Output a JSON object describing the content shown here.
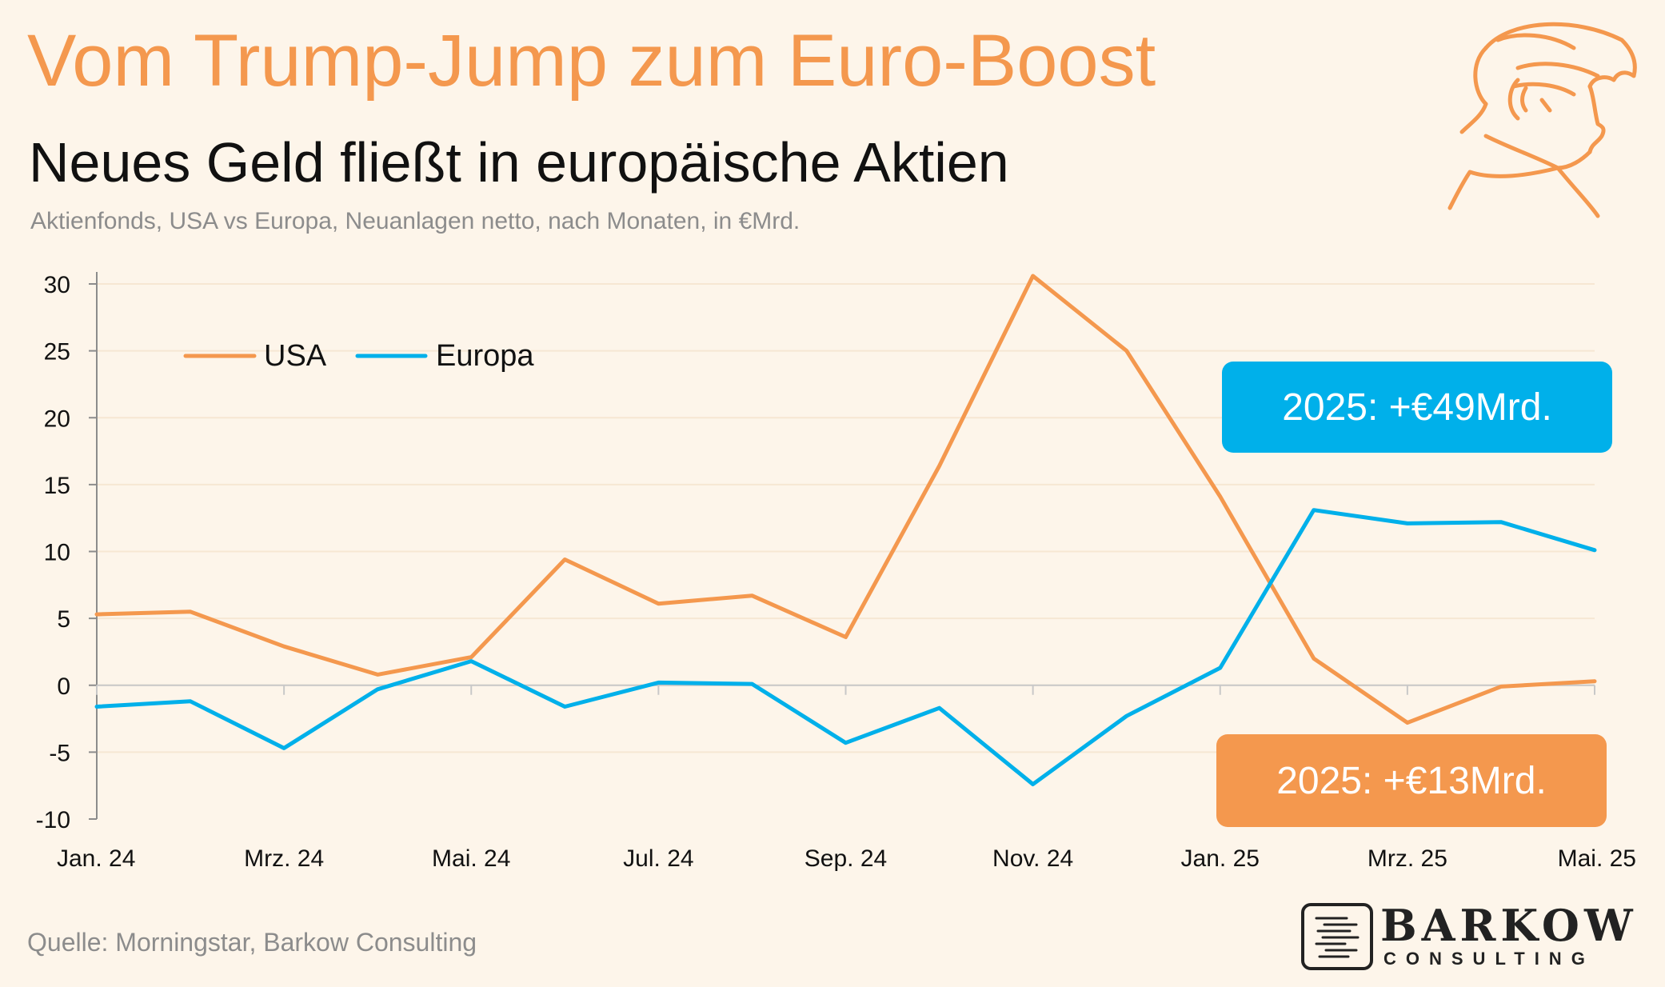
{
  "header": {
    "title": "Vom Trump-Jump zum Euro-Boost",
    "subtitle": "Neues Geld fließt in europäische Aktien",
    "caption": "Aktienfonds, USA vs Europa, Neuanlagen netto, nach Monaten, in €Mrd."
  },
  "callouts": {
    "europa": "2025: +€49Mrd.",
    "usa": "2025: +€13Mrd."
  },
  "footer": {
    "source": "Quelle: Morningstar, Barkow Consulting"
  },
  "logo": {
    "name": "BARKOW",
    "tagline": "CONSULTING"
  },
  "chart_data": {
    "type": "line",
    "ylim": [
      -10,
      30
    ],
    "yticks": [
      -10,
      -5,
      0,
      5,
      10,
      15,
      20,
      25,
      30
    ],
    "x": [
      "Jan. 24",
      "Feb. 24",
      "Mrz. 24",
      "Apr. 24",
      "Mai. 24",
      "Jun. 24",
      "Jul. 24",
      "Aug. 24",
      "Sep. 24",
      "Okt. 24",
      "Nov. 24",
      "Dez. 24",
      "Jan. 25",
      "Feb. 25",
      "Mrz. 25",
      "Apr. 25",
      "Mai. 25"
    ],
    "xtick_labels": [
      "Jan. 24",
      "Mrz. 24",
      "Mai. 24",
      "Jul. 24",
      "Sep. 24",
      "Nov. 24",
      "Jan. 25",
      "Mrz. 25",
      "Mai. 25"
    ],
    "legend_position": "top-left",
    "grid": true,
    "series": [
      {
        "name": "USA",
        "color": "#f4984e",
        "values": [
          5.3,
          5.5,
          2.9,
          0.8,
          2.1,
          9.4,
          6.1,
          6.7,
          3.6,
          16.4,
          30.6,
          25.0,
          14.1,
          2.0,
          -2.8,
          -0.1,
          0.3
        ]
      },
      {
        "name": "Europa",
        "color": "#00b0ea",
        "values": [
          -1.6,
          -1.2,
          -4.7,
          -0.3,
          1.8,
          -1.6,
          0.2,
          0.1,
          -4.3,
          -1.7,
          -7.4,
          -2.3,
          1.3,
          13.1,
          12.1,
          12.2,
          10.1
        ]
      }
    ]
  }
}
